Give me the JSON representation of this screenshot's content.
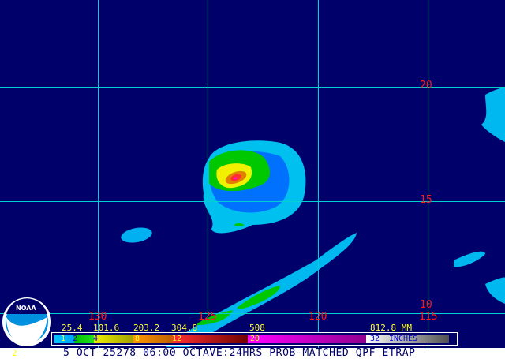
{
  "map": {
    "lat_labels": [
      "20",
      "15",
      "10"
    ],
    "lon_labels": [
      "130",
      "125",
      "120",
      "115"
    ],
    "background_color": "#00006a",
    "grid_color": "#00d0d0"
  },
  "legend": {
    "mm_labels": [
      "25.4",
      "101.6",
      "203.2",
      "304.8",
      "508",
      "812.8 MM"
    ],
    "inch_labels": [
      "1",
      "2",
      "4",
      "8",
      "12",
      "20",
      "32",
      "INCHES"
    ]
  },
  "logo": {
    "text": "NOAA"
  },
  "caption": {
    "frame_number": "2",
    "text": "5 OCT 25278 06:00 OCTAVE:24HRS PROB-MATCHED QPF ETRAP"
  }
}
